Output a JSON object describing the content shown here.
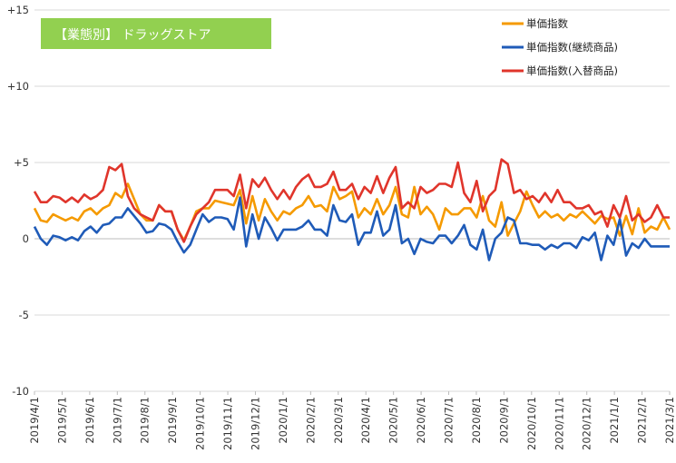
{
  "chart_data": {
    "type": "line",
    "badge": "【業態別】 ドラッグストア",
    "ylim": [
      -10,
      15
    ],
    "y_ticks": [
      15,
      10,
      5,
      0,
      -5,
      -10
    ],
    "y_tick_labels": [
      "+15",
      "+10",
      "+5",
      "0",
      "-5",
      "-10"
    ],
    "x_tick_labels": [
      "2019/4/1",
      "2019/5/1",
      "2019/6/1",
      "2019/7/1",
      "2019/8/1",
      "2019/9/1",
      "2019/10/1",
      "2019/11/1",
      "2019/12/1",
      "2020/1/1",
      "2020/2/1",
      "2020/3/1",
      "2020/4/1",
      "2020/5/1",
      "2020/6/1",
      "2020/7/1",
      "2020/8/1",
      "2020/9/1",
      "2020/10/1",
      "2020/11/1",
      "2020/12/1",
      "2021/1/1",
      "2021/2/1",
      "2021/3/1"
    ],
    "grid": "horizontal",
    "legend_position": "top-right",
    "series": [
      {
        "name": "単価指数",
        "color": "#F59A00",
        "values": [
          2.0,
          1.2,
          1.1,
          1.6,
          1.4,
          1.2,
          1.4,
          1.2,
          1.8,
          2.0,
          1.6,
          2.0,
          2.2,
          3.0,
          2.7,
          3.6,
          2.6,
          1.6,
          1.2,
          1.2,
          2.2,
          1.8,
          1.8,
          0.6,
          -0.1,
          0.8,
          1.8,
          2.0,
          2.0,
          2.5,
          2.4,
          2.3,
          2.2,
          3.2,
          1.0,
          2.8,
          1.2,
          2.6,
          1.8,
          1.2,
          1.8,
          1.6,
          2.0,
          2.2,
          2.8,
          2.1,
          2.2,
          1.8,
          3.4,
          2.6,
          2.8,
          3.1,
          1.4,
          2.0,
          1.6,
          2.6,
          1.6,
          2.2,
          3.4,
          1.6,
          1.4,
          3.4,
          1.6,
          2.1,
          1.6,
          0.6,
          2.0,
          1.6,
          1.6,
          2.0,
          2.0,
          1.4,
          2.8,
          1.2,
          0.8,
          2.4,
          0.2,
          1.0,
          1.8,
          3.1,
          2.2,
          1.4,
          1.8,
          1.4,
          1.6,
          1.2,
          1.6,
          1.4,
          1.8,
          1.4,
          1.0,
          1.5,
          1.3,
          1.4,
          0.2,
          1.5,
          0.3,
          2.0,
          0.4,
          0.8,
          0.6,
          1.4,
          0.6
        ]
      },
      {
        "name": "単価指数(継続商品)",
        "color": "#1F5BB8",
        "values": [
          0.8,
          0.0,
          -0.4,
          0.2,
          0.1,
          -0.1,
          0.1,
          -0.1,
          0.5,
          0.8,
          0.4,
          0.9,
          1.0,
          1.4,
          1.4,
          2.0,
          1.5,
          1.0,
          0.4,
          0.5,
          1.0,
          0.9,
          0.6,
          -0.2,
          -0.9,
          -0.4,
          0.6,
          1.6,
          1.1,
          1.4,
          1.4,
          1.3,
          0.6,
          2.7,
          -0.5,
          1.6,
          0.0,
          1.4,
          0.7,
          -0.1,
          0.6,
          0.6,
          0.6,
          0.8,
          1.2,
          0.6,
          0.6,
          0.2,
          2.2,
          1.2,
          1.1,
          1.6,
          -0.4,
          0.4,
          0.4,
          1.8,
          0.2,
          0.6,
          2.2,
          -0.3,
          0.0,
          -1.0,
          0.0,
          -0.2,
          -0.3,
          0.2,
          0.2,
          -0.3,
          0.2,
          0.9,
          -0.4,
          -0.7,
          0.6,
          -1.4,
          0.0,
          0.4,
          1.4,
          1.2,
          -0.3,
          -0.3,
          -0.4,
          -0.4,
          -0.7,
          -0.4,
          -0.6,
          -0.3,
          -0.3,
          -0.6,
          0.1,
          -0.1,
          0.4,
          -1.4,
          0.2,
          -0.4,
          1.3,
          -1.1,
          -0.3,
          -0.6,
          0.0,
          -0.5,
          -0.5,
          -0.5,
          -0.5
        ]
      },
      {
        "name": "単価指数(入替商品)",
        "color": "#E0352B",
        "values": [
          3.1,
          2.4,
          2.4,
          2.8,
          2.7,
          2.4,
          2.7,
          2.4,
          2.9,
          2.6,
          2.8,
          3.2,
          4.7,
          4.5,
          4.9,
          2.8,
          2.0,
          1.6,
          1.4,
          1.2,
          2.2,
          1.8,
          1.8,
          0.6,
          -0.2,
          0.8,
          1.6,
          2.0,
          2.4,
          3.2,
          3.2,
          3.2,
          2.8,
          4.2,
          2.0,
          3.9,
          3.4,
          4.0,
          3.2,
          2.6,
          3.2,
          2.6,
          3.4,
          3.9,
          4.2,
          3.4,
          3.4,
          3.6,
          4.4,
          3.2,
          3.2,
          3.6,
          2.6,
          3.4,
          3.0,
          4.1,
          3.0,
          4.0,
          4.7,
          2.0,
          2.4,
          2.0,
          3.4,
          3.0,
          3.2,
          3.6,
          3.6,
          3.4,
          5.0,
          3.0,
          2.4,
          3.8,
          1.8,
          2.8,
          3.2,
          5.2,
          4.9,
          3.0,
          3.2,
          2.6,
          2.8,
          2.4,
          3.0,
          2.4,
          3.2,
          2.4,
          2.4,
          2.0,
          2.0,
          2.2,
          1.6,
          1.8,
          0.8,
          2.2,
          1.4,
          2.8,
          1.2,
          1.6,
          1.1,
          1.4,
          2.2,
          1.4,
          1.4
        ]
      }
    ]
  }
}
